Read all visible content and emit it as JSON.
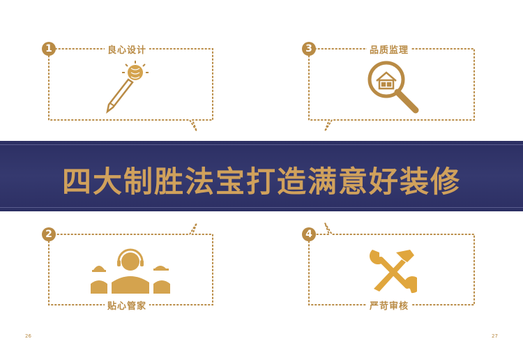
{
  "banner": {
    "title": "四大制胜法宝打造满意好装修"
  },
  "features": [
    {
      "number": "1",
      "title": "良心设计",
      "icon": "pencil-bulb-icon"
    },
    {
      "number": "2",
      "title": "贴心管家",
      "icon": "service-team-icon"
    },
    {
      "number": "3",
      "title": "品质监理",
      "icon": "magnifier-house-icon"
    },
    {
      "number": "4",
      "title": "严苛审核",
      "icon": "wrench-hammer-icon"
    }
  ],
  "page_numbers": {
    "left": "26",
    "right": "27"
  },
  "colors": {
    "gold": "#b98b45",
    "navy": "#2c2f63",
    "banner_text": "#d0a15c"
  }
}
